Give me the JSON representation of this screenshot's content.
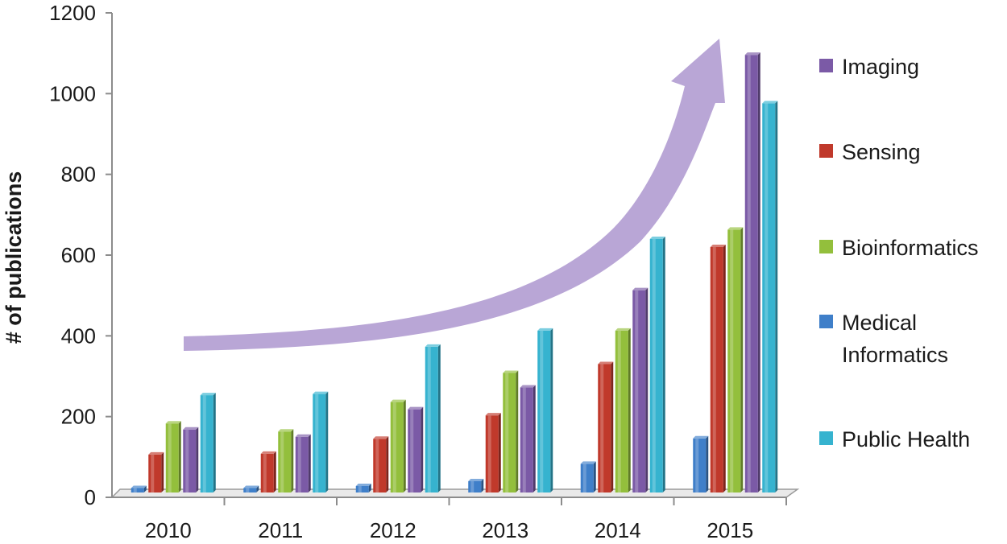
{
  "chart_data": {
    "type": "bar",
    "title": "",
    "xlabel": "",
    "ylabel": "# of publications",
    "ylim": [
      0,
      1200
    ],
    "yticks": [
      0,
      200,
      400,
      600,
      800,
      1000,
      1200
    ],
    "categories": [
      "2010",
      "2011",
      "2012",
      "2013",
      "2014",
      "2015"
    ],
    "series": [
      {
        "name": "Medical Informatics",
        "color": "#3f7fc9",
        "values": [
          15,
          15,
          20,
          32,
          75,
          138
        ]
      },
      {
        "name": "Sensing",
        "color": "#c0392b",
        "values": [
          98,
          100,
          137,
          195,
          322,
          612
        ]
      },
      {
        "name": "Bioinformatics",
        "color": "#93bf3c",
        "values": [
          175,
          155,
          228,
          300,
          405,
          655
        ]
      },
      {
        "name": "Imaging",
        "color": "#7b5aa6",
        "values": [
          160,
          142,
          210,
          264,
          505,
          1088
        ]
      },
      {
        "name": "Public Health",
        "color": "#36b3cf",
        "values": [
          245,
          248,
          365,
          405,
          632,
          968
        ]
      }
    ],
    "legend": {
      "position": "right",
      "order": [
        "Imaging",
        "Sensing",
        "Bioinformatics",
        "Medical Informatics",
        "Public Health"
      ]
    },
    "annotation": {
      "type": "trend-arrow",
      "color": "#b9a6d6",
      "direction": "up-right"
    },
    "grid": false
  }
}
